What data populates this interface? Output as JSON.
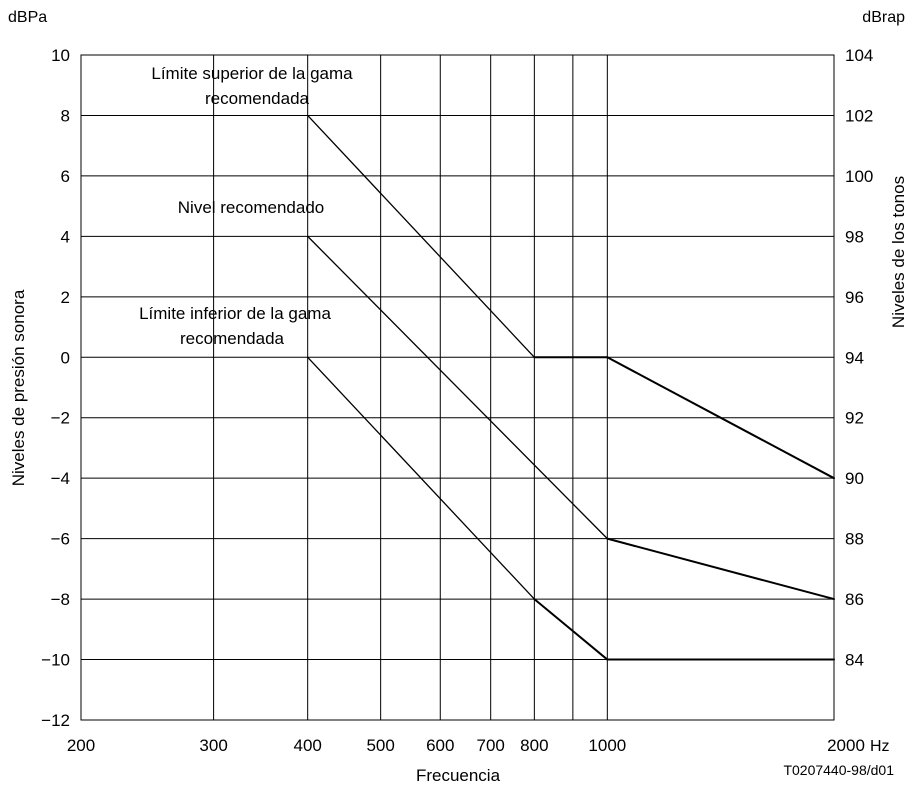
{
  "chart_data": {
    "type": "line",
    "title": "",
    "xlabel": "Frecuencia",
    "ylabel": "Niveles de presión sonora",
    "y2label": "Niveles de los tonos",
    "left_unit": "dBPa",
    "right_unit": "dBrap",
    "x_unit": "Hz",
    "x_scale": "log",
    "xlim": [
      200,
      2000
    ],
    "ylim": [
      -12,
      10
    ],
    "y2lim": [
      82,
      104
    ],
    "x_ticks": [
      200,
      300,
      400,
      500,
      600,
      700,
      800,
      1000,
      2000
    ],
    "x_tick_labels": [
      "200",
      "300",
      "400",
      "500",
      "600",
      "700",
      "800",
      "1000",
      "2000"
    ],
    "x_gridlines": [
      300,
      400,
      500,
      600,
      700,
      800,
      900,
      1000
    ],
    "y_ticks": [
      10,
      8,
      6,
      4,
      2,
      0,
      -2,
      -4,
      -6,
      -8,
      -10,
      -12
    ],
    "y_tick_labels": [
      "10",
      "8",
      "6",
      "4",
      "2",
      "0",
      "−2",
      "−4",
      "−6",
      "−8",
      "−10",
      "−12"
    ],
    "y2_ticks": [
      104,
      102,
      100,
      98,
      96,
      94,
      92,
      90,
      88,
      86,
      84
    ],
    "y2_tick_labels": [
      "104",
      "102",
      "100",
      "98",
      "96",
      "94",
      "92",
      "90",
      "88",
      "86",
      "84"
    ],
    "grid": true,
    "series": [
      {
        "x": [
          400,
          800,
          1000,
          2000
        ],
        "y": [
          8,
          0,
          0,
          -4
        ],
        "label_lines": [
          "Límite superior de la gama",
          "recomendada"
        ]
      },
      {
        "x": [
          400,
          1000,
          2000
        ],
        "y": [
          4,
          -6,
          -8
        ],
        "label_lines": [
          "Nivel recomendado"
        ]
      },
      {
        "x": [
          400,
          800,
          1000,
          2000
        ],
        "y": [
          0,
          -8,
          -10,
          -10
        ],
        "label_lines": [
          "Límite inferior de la gama",
          "recomendada"
        ]
      }
    ],
    "reference_code": "T0207440-98/d01"
  }
}
